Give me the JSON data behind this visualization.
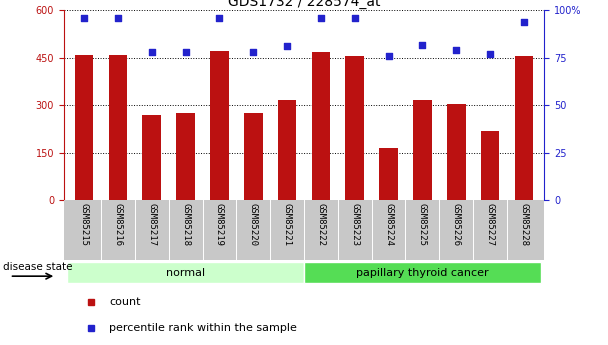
{
  "title": "GDS1732 / 228574_at",
  "categories": [
    "GSM85215",
    "GSM85216",
    "GSM85217",
    "GSM85218",
    "GSM85219",
    "GSM85220",
    "GSM85221",
    "GSM85222",
    "GSM85223",
    "GSM85224",
    "GSM85225",
    "GSM85226",
    "GSM85227",
    "GSM85228"
  ],
  "bar_values": [
    460,
    458,
    270,
    275,
    470,
    275,
    315,
    468,
    455,
    165,
    315,
    305,
    218,
    455
  ],
  "dot_values": [
    96,
    96,
    78,
    78,
    96,
    78,
    81,
    96,
    96,
    76,
    82,
    79,
    77,
    94
  ],
  "bar_color": "#bb1111",
  "dot_color": "#2222cc",
  "ylim_left": [
    0,
    600
  ],
  "ylim_right": [
    0,
    100
  ],
  "yticks_left": [
    0,
    150,
    300,
    450,
    600
  ],
  "yticks_right": [
    0,
    25,
    50,
    75,
    100
  ],
  "ytick_labels_right": [
    "0",
    "25",
    "50",
    "75",
    "100%"
  ],
  "groups": [
    {
      "label": "normal",
      "start": 0,
      "end": 7,
      "color": "#ccffcc"
    },
    {
      "label": "papillary thyroid cancer",
      "start": 7,
      "end": 14,
      "color": "#55dd55"
    }
  ],
  "disease_state_label": "disease state",
  "legend_count_label": "count",
  "legend_pct_label": "percentile rank within the sample",
  "background_color": "#ffffff",
  "tick_area_color": "#c8c8c8",
  "title_fontsize": 10,
  "tick_fontsize": 7,
  "label_fontsize": 8
}
